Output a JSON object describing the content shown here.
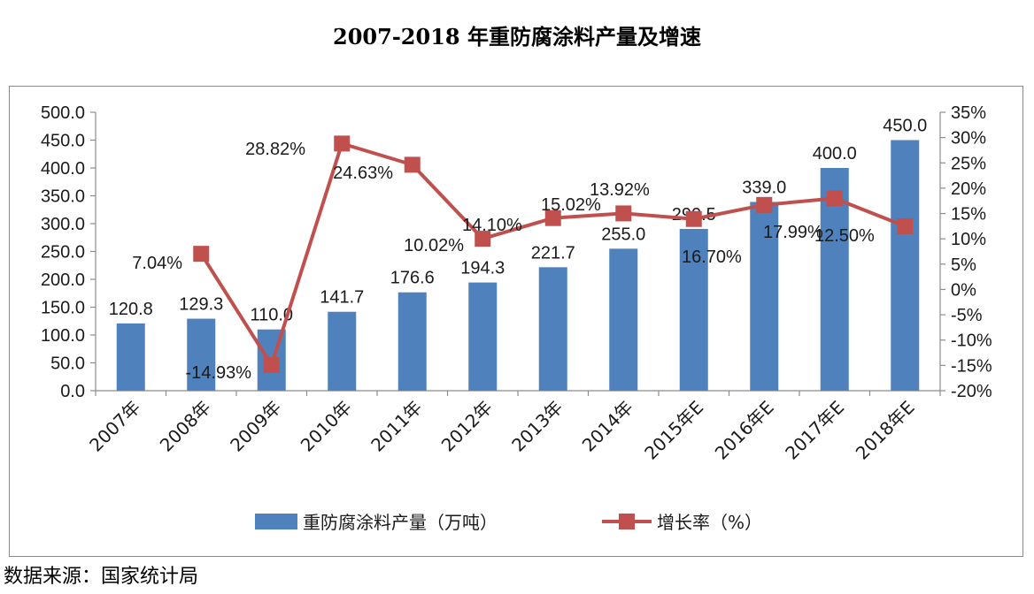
{
  "chart_data": {
    "type": "bar+line",
    "title": "2007-2018 年重防腐涂料产量及增速",
    "categories": [
      "2007年",
      "2008年",
      "2009年",
      "2010年",
      "2011年",
      "2012年",
      "2013年",
      "2014年",
      "2015年E",
      "2016年E",
      "2017年E",
      "2018年E"
    ],
    "series": [
      {
        "name": "重防腐涂料产量（万吨）",
        "type": "bar",
        "axis": "left",
        "color": "#4f81bd",
        "values": [
          120.8,
          129.3,
          110.0,
          141.7,
          176.6,
          194.3,
          221.7,
          255.0,
          290.5,
          339.0,
          400.0,
          450.0
        ],
        "labels": [
          "120.8",
          "129.3",
          "110.0",
          "141.7",
          "176.6",
          "194.3",
          "221.7",
          "255.0",
          "290.5",
          "339.0",
          "400.0",
          "450.0"
        ]
      },
      {
        "name": "增长率（%）",
        "type": "line",
        "axis": "right",
        "color": "#c0504d",
        "values": [
          null,
          7.04,
          -14.93,
          28.82,
          24.63,
          10.02,
          14.1,
          15.02,
          13.92,
          16.7,
          17.99,
          12.5
        ],
        "labels": [
          "",
          "7.04%",
          "-14.93%",
          "28.82%",
          "24.63%",
          "10.02%",
          "14.10%",
          "15.02%",
          "13.92%",
          "16.70%",
          "17.99%",
          "12.50%"
        ]
      }
    ],
    "left_axis": {
      "min": 0,
      "max": 500,
      "step": 50,
      "tick_labels": [
        "0.0",
        "50.0",
        "100.0",
        "150.0",
        "200.0",
        "250.0",
        "300.0",
        "350.0",
        "400.0",
        "450.0",
        "500.0"
      ]
    },
    "right_axis": {
      "min": -20,
      "max": 35,
      "step": 5,
      "tick_labels": [
        "-20%",
        "-15%",
        "-10%",
        "-5%",
        "0%",
        "5%",
        "10%",
        "15%",
        "20%",
        "25%",
        "30%",
        "35%"
      ]
    },
    "legend": "bottom",
    "grid": false
  },
  "source_note": "数据来源：国家统计局"
}
